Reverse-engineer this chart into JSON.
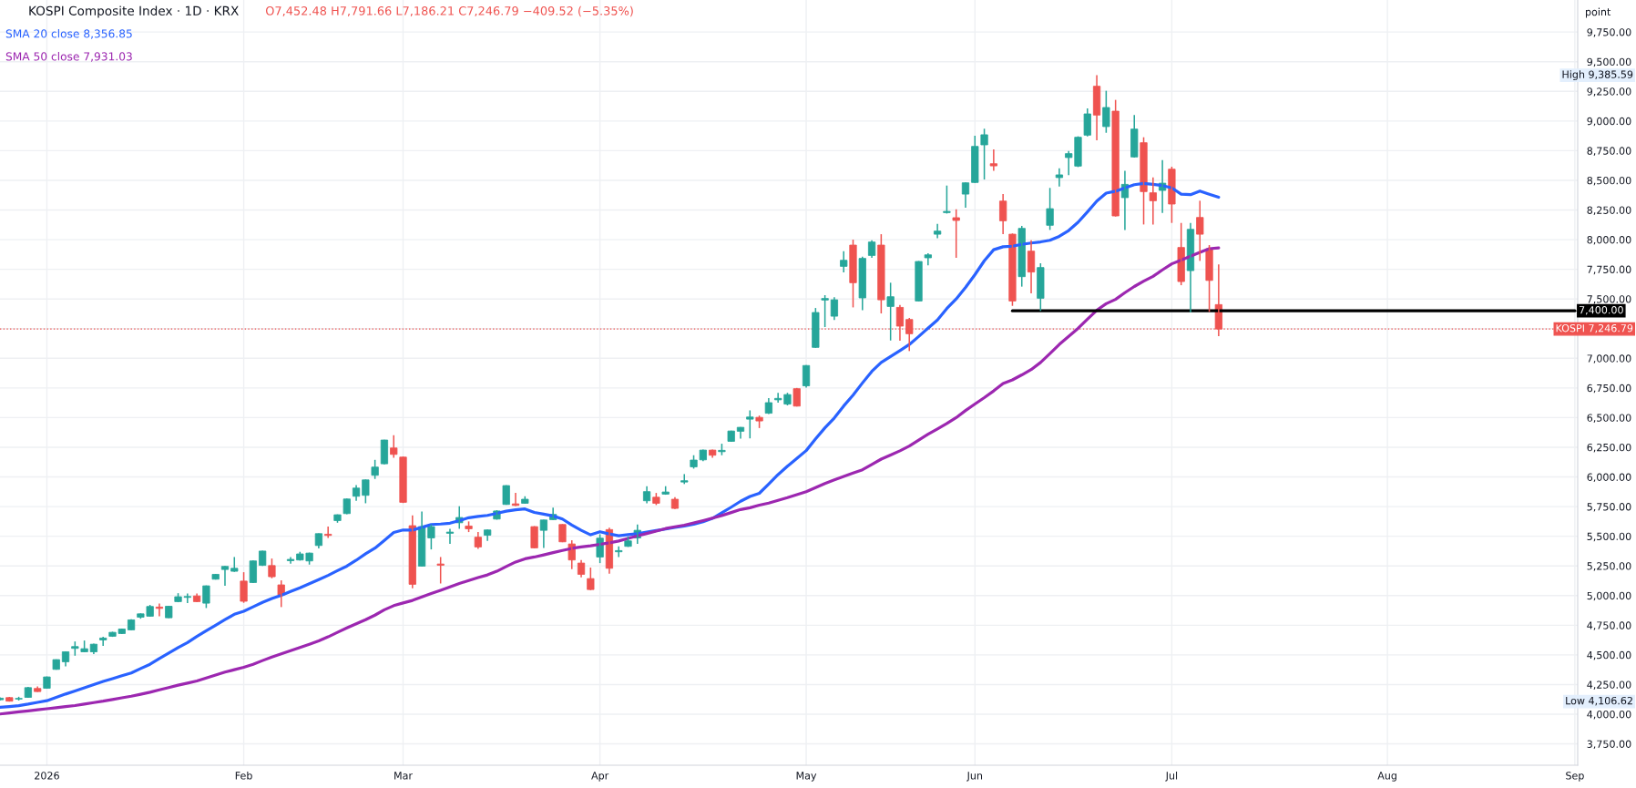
{
  "chart_data": {
    "type": "candlestick",
    "title": "KOSPI Composite Index · 1D · KRX",
    "subtitle": "O7,452.48 H7,791.66 L7,186.21 C7,246.79 −409.52 (−5.35%)",
    "ylabel": "point",
    "categories": [
      null,
      null,
      null,
      null,
      null,
      "2026",
      null,
      null,
      null,
      null,
      null,
      null,
      null,
      null,
      null,
      null,
      null,
      null,
      null,
      null,
      null,
      null,
      null,
      null,
      null,
      null,
      "Feb",
      null,
      null,
      null,
      null,
      null,
      null,
      null,
      null,
      null,
      null,
      null,
      null,
      null,
      null,
      null,
      null,
      "Mar",
      null,
      null,
      null,
      null,
      null,
      null,
      null,
      null,
      null,
      null,
      null,
      null,
      null,
      null,
      null,
      null,
      null,
      null,
      null,
      null,
      "Apr",
      null,
      null,
      null,
      null,
      null,
      null,
      null,
      null,
      null,
      null,
      null,
      null,
      null,
      null,
      null,
      null,
      null,
      null,
      null,
      null,
      null,
      "May",
      null,
      null,
      null,
      null,
      null,
      null,
      null,
      null,
      null,
      null,
      null,
      null,
      null,
      null,
      null,
      null,
      null,
      "Jun",
      null,
      null,
      null,
      null,
      null,
      null,
      null,
      null,
      null,
      null,
      null,
      null,
      null,
      null,
      null,
      null,
      null,
      null,
      null,
      null,
      "Jul",
      null,
      null,
      null,
      null,
      null,
      null,
      null,
      null,
      null,
      null,
      null,
      null,
      null,
      null,
      null,
      null,
      null,
      null,
      null,
      null,
      null,
      null,
      "Aug",
      null,
      null,
      null,
      null,
      null,
      null,
      null,
      null,
      null,
      null,
      null,
      null,
      null,
      null,
      null,
      null,
      null,
      null,
      null,
      "Sep"
    ],
    "ohlc": [
      [
        4122,
        4142,
        4115,
        4135
      ],
      [
        4140,
        4146,
        4106.62,
        4110
      ],
      [
        4128,
        4147,
        4115,
        4133
      ],
      [
        4142,
        4230,
        4138,
        4224
      ],
      [
        4217,
        4235,
        4188,
        4191
      ],
      [
        4219,
        4318,
        4215,
        4314
      ],
      [
        4378,
        4462,
        4375,
        4460
      ],
      [
        4442,
        4528,
        4404,
        4526
      ],
      [
        4555,
        4613,
        4493,
        4570
      ],
      [
        4526,
        4621,
        4522,
        4552
      ],
      [
        4526,
        4595,
        4506,
        4590
      ],
      [
        4626,
        4652,
        4575,
        4642
      ],
      [
        4657,
        4695,
        4652,
        4690
      ],
      [
        4680,
        4722,
        4676,
        4718
      ],
      [
        4711,
        4800,
        4708,
        4795
      ],
      [
        4818,
        4850,
        4805,
        4846
      ],
      [
        4826,
        4921,
        4822,
        4908
      ],
      [
        4903,
        4933,
        4826,
        4892
      ],
      [
        4813,
        4913,
        4810,
        4910
      ],
      [
        4949,
        5020,
        4944,
        4990
      ],
      [
        4985,
        5018,
        4936,
        4992
      ],
      [
        4997,
        5018,
        4945,
        4949
      ],
      [
        4936,
        5085,
        4895,
        5082
      ],
      [
        5138,
        5182,
        5135,
        5179
      ],
      [
        5220,
        5250,
        5082,
        5246
      ],
      [
        5205,
        5325,
        5200,
        5230
      ],
      [
        5122,
        5197,
        4939,
        4952
      ],
      [
        5110,
        5295,
        5105,
        5292
      ],
      [
        5255,
        5378,
        5250,
        5375
      ],
      [
        5253,
        5312,
        5146,
        5159
      ],
      [
        5090,
        5128,
        4903,
        5005
      ],
      [
        5294,
        5325,
        5269,
        5305
      ],
      [
        5300,
        5369,
        5295,
        5351
      ],
      [
        5292,
        5362,
        5261,
        5358
      ],
      [
        5422,
        5525,
        5397,
        5522
      ],
      [
        5517,
        5581,
        5486,
        5507
      ],
      [
        5632,
        5684,
        5614,
        5681
      ],
      [
        5691,
        5817,
        5686,
        5814
      ],
      [
        5837,
        5932,
        5799,
        5906
      ],
      [
        5845,
        5978,
        5778,
        5975
      ],
      [
        6014,
        6144,
        5983,
        6083
      ],
      [
        6111,
        6314,
        6106,
        6311
      ],
      [
        6244,
        6352,
        6162,
        6190
      ],
      [
        6167,
        6172,
        5780,
        5786
      ],
      [
        5589,
        5676,
        5061,
        5095
      ],
      [
        5248,
        5709,
        5244,
        5581
      ],
      [
        5486,
        5599,
        5389,
        5581
      ],
      [
        5266,
        5325,
        5102,
        5256
      ],
      [
        5525,
        5563,
        5435,
        5535
      ],
      [
        5614,
        5753,
        5563,
        5658
      ],
      [
        5586,
        5625,
        5535,
        5563
      ],
      [
        5492,
        5535,
        5394,
        5410
      ],
      [
        5509,
        5557,
        5461,
        5553
      ],
      [
        5645,
        5720,
        5640,
        5713
      ],
      [
        5768,
        5930,
        5765,
        5927
      ],
      [
        5773,
        5865,
        5755,
        5760
      ],
      [
        5778,
        5837,
        5775,
        5812
      ],
      [
        5581,
        5585,
        5398,
        5402
      ],
      [
        5550,
        5640,
        5402,
        5637
      ],
      [
        5640,
        5742,
        5637,
        5684
      ],
      [
        5599,
        5602,
        5450,
        5453
      ],
      [
        5435,
        5466,
        5223,
        5300
      ],
      [
        5274,
        5300,
        5154,
        5179
      ],
      [
        5143,
        5236,
        5046,
        5051
      ],
      [
        5325,
        5517,
        5274,
        5484
      ],
      [
        5556,
        5573,
        5184,
        5230
      ],
      [
        5369,
        5415,
        5325,
        5379
      ],
      [
        5415,
        5497,
        5410,
        5461
      ],
      [
        5486,
        5599,
        5435,
        5550
      ],
      [
        5799,
        5922,
        5778,
        5876
      ],
      [
        5829,
        5865,
        5763,
        5778
      ],
      [
        5855,
        5922,
        5850,
        5873
      ],
      [
        5812,
        5829,
        5730,
        5735
      ],
      [
        5957,
        6024,
        5940,
        5968
      ],
      [
        6085,
        6183,
        6070,
        6142
      ],
      [
        6144,
        6230,
        6132,
        6226
      ],
      [
        6226,
        6230,
        6162,
        6183
      ],
      [
        6213,
        6280,
        6183,
        6224
      ],
      [
        6300,
        6390,
        6296,
        6387
      ],
      [
        6385,
        6421,
        6323,
        6418
      ],
      [
        6487,
        6561,
        6325,
        6505
      ],
      [
        6502,
        6517,
        6412,
        6472
      ],
      [
        6537,
        6665,
        6530,
        6626
      ],
      [
        6650,
        6709,
        6626,
        6662
      ],
      [
        6614,
        6709,
        6603,
        6694
      ],
      [
        6744,
        6750,
        6594,
        6597
      ],
      [
        6768,
        6942,
        6753,
        6939
      ],
      [
        7092,
        7424,
        7088,
        7386
      ],
      [
        7491,
        7532,
        7263,
        7504
      ],
      [
        7355,
        7514,
        7322,
        7493
      ],
      [
        7775,
        7903,
        7724,
        7826
      ],
      [
        7954,
        8000,
        7429,
        7637
      ],
      [
        7509,
        7857,
        7406,
        7842
      ],
      [
        7867,
        7995,
        7847,
        7980
      ],
      [
        7954,
        8046,
        7378,
        7493
      ],
      [
        7437,
        7637,
        7150,
        7519
      ],
      [
        7429,
        7450,
        7148,
        7271
      ],
      [
        7327,
        7340,
        7061,
        7207
      ],
      [
        7483,
        7820,
        7480,
        7816
      ],
      [
        7847,
        7885,
        7783,
        7872
      ],
      [
        8046,
        8133,
        8013,
        8072
      ],
      [
        8228,
        8456,
        8220,
        8238
      ],
      [
        8185,
        8256,
        7847,
        8162
      ],
      [
        8384,
        8482,
        8269,
        8479
      ],
      [
        8482,
        8876,
        8478,
        8786
      ],
      [
        8799,
        8935,
        8507,
        8884
      ],
      [
        8640,
        8761,
        8581,
        8622
      ],
      [
        8325,
        8384,
        8046,
        8159
      ],
      [
        8046,
        8052,
        7442,
        7483
      ],
      [
        7688,
        8116,
        7604,
        8095
      ],
      [
        7903,
        7995,
        7547,
        7727
      ],
      [
        7506,
        7801,
        7399,
        7765
      ],
      [
        8121,
        8436,
        8082,
        8261
      ],
      [
        8523,
        8602,
        8448,
        8546
      ],
      [
        8692,
        8748,
        8543,
        8725
      ],
      [
        8620,
        8871,
        8612,
        8863
      ],
      [
        8881,
        9106,
        8871,
        9060
      ],
      [
        9293,
        9385.59,
        8838,
        9050
      ],
      [
        8953,
        9255,
        8901,
        9114
      ],
      [
        9083,
        9178,
        8195,
        8200
      ],
      [
        8354,
        8581,
        8082,
        8466
      ],
      [
        8697,
        9050,
        8692,
        8932
      ],
      [
        8817,
        8863,
        8128,
        8405
      ],
      [
        8395,
        8525,
        8128,
        8328
      ],
      [
        8415,
        8671,
        8225,
        8476
      ],
      [
        8594,
        8615,
        8141,
        8300
      ],
      [
        7934,
        8141,
        7616,
        7647
      ],
      [
        7739,
        8141,
        7386,
        8087
      ],
      [
        8187,
        8328,
        7821,
        8046
      ],
      [
        7923,
        7954,
        7391,
        7656.31
      ],
      [
        7452.48,
        7791.66,
        7186.21,
        7246.79
      ],
      null,
      null,
      null,
      null,
      null,
      null,
      null,
      null,
      null,
      null,
      null,
      null,
      null,
      null,
      null,
      null,
      null,
      null,
      null,
      null,
      null,
      null,
      null,
      null,
      null,
      null,
      null,
      null,
      null,
      null,
      null,
      null,
      null,
      null,
      null,
      null,
      null,
      null
    ],
    "colors": [
      "#26a69a",
      "#ef5350",
      "#26a69a",
      "#26a69a",
      "#ef5350",
      "#26a69a",
      "#26a69a",
      "#26a69a",
      "#26a69a",
      "#26a69a",
      "#26a69a",
      "#26a69a",
      "#26a69a",
      "#26a69a",
      "#26a69a",
      "#26a69a",
      "#26a69a",
      "#ef5350",
      "#26a69a",
      "#26a69a",
      "#26a69a",
      "#ef5350",
      "#26a69a",
      "#26a69a",
      "#26a69a",
      "#26a69a",
      "#ef5350",
      "#26a69a",
      "#26a69a",
      "#ef5350",
      "#ef5350",
      "#26a69a",
      "#26a69a",
      "#26a69a",
      "#26a69a",
      "#ef5350",
      "#26a69a",
      "#26a69a",
      "#26a69a",
      "#26a69a",
      "#26a69a",
      "#26a69a",
      "#ef5350",
      "#ef5350",
      "#ef5350",
      "#26a69a",
      "#26a69a",
      "#ef5350",
      "#26a69a",
      "#26a69a",
      "#ef5350",
      "#ef5350",
      "#26a69a",
      "#26a69a",
      "#26a69a",
      "#ef5350",
      "#26a69a",
      "#ef5350",
      "#26a69a",
      "#26a69a",
      "#ef5350",
      "#ef5350",
      "#ef5350",
      "#ef5350",
      "#26a69a",
      "#ef5350",
      "#26a69a",
      "#26a69a",
      "#26a69a",
      "#26a69a",
      "#ef5350",
      "#26a69a",
      "#ef5350",
      "#26a69a",
      "#26a69a",
      "#26a69a",
      "#ef5350",
      "#26a69a",
      "#26a69a",
      "#26a69a",
      "#26a69a",
      "#ef5350",
      "#26a69a",
      "#26a69a",
      "#26a69a",
      "#ef5350",
      "#26a69a",
      "#26a69a",
      "#26a69a",
      "#26a69a",
      "#26a69a",
      "#ef5350",
      "#26a69a",
      "#26a69a",
      "#ef5350",
      "#26a69a",
      "#ef5350",
      "#ef5350",
      "#26a69a",
      "#26a69a",
      "#26a69a",
      "#26a69a",
      "#ef5350",
      "#26a69a",
      "#26a69a",
      "#26a69a",
      "#ef5350",
      "#ef5350",
      "#ef5350",
      "#26a69a",
      "#ef5350",
      "#26a69a",
      "#26a69a",
      "#26a69a",
      "#26a69a",
      "#26a69a",
      "#26a69a",
      "#ef5350",
      "#26a69a",
      "#ef5350",
      "#26a69a",
      "#26a69a",
      "#ef5350",
      "#ef5350",
      "#26a69a",
      "#ef5350",
      "#ef5350",
      "#26a69a",
      "#ef5350",
      "#ef5350",
      "#ef5350",
      null,
      null,
      null,
      null,
      null,
      null,
      null,
      null,
      null,
      null,
      null,
      null,
      null,
      null,
      null,
      null,
      null,
      null,
      null,
      null,
      null,
      null,
      null,
      null,
      null,
      null,
      null,
      null,
      null,
      null,
      null,
      null,
      null,
      null,
      null,
      null,
      null,
      null
    ],
    "series": [
      {
        "name": "SMA 20 close 8,356.85",
        "type": "line",
        "color": "#2962ff",
        "values": [
          4058,
          4065,
          4072,
          4085,
          4100,
          4114,
          4142,
          4170,
          4196,
          4223,
          4250,
          4276,
          4300,
          4324,
          4348,
          4385,
          4421,
          4470,
          4515,
          4562,
          4604,
          4655,
          4703,
          4750,
          4797,
          4842,
          4868,
          4905,
          4943,
          4975,
          5002,
          5035,
          5066,
          5100,
          5135,
          5170,
          5210,
          5248,
          5298,
          5352,
          5400,
          5465,
          5532,
          5553,
          5552,
          5575,
          5599,
          5603,
          5610,
          5632,
          5656,
          5667,
          5676,
          5693,
          5711,
          5723,
          5730,
          5701,
          5686,
          5671,
          5645,
          5595,
          5550,
          5512,
          5538,
          5519,
          5504,
          5513,
          5522,
          5535,
          5548,
          5561,
          5574,
          5587,
          5601,
          5622,
          5650,
          5697,
          5745,
          5795,
          5835,
          5862,
          5940,
          6020,
          6090,
          6155,
          6222,
          6320,
          6414,
          6497,
          6598,
          6690,
          6792,
          6890,
          6965,
          7015,
          7065,
          7116,
          7184,
          7254,
          7323,
          7419,
          7500,
          7597,
          7705,
          7822,
          7915,
          7940,
          7945,
          7960,
          7972,
          7981,
          7995,
          8028,
          8077,
          8146,
          8234,
          8325,
          8392,
          8408,
          8436,
          8463,
          8474,
          8466,
          8456,
          8436,
          8384,
          8379,
          8410,
          8383,
          8356.85,
          null,
          null,
          null,
          null,
          null,
          null,
          null,
          null,
          null,
          null,
          null,
          null,
          null,
          null,
          null,
          null,
          null,
          null,
          null,
          null,
          null,
          null,
          null,
          null,
          null,
          null,
          null,
          null,
          null,
          null,
          null,
          null,
          null,
          null,
          null,
          null,
          null,
          null
        ]
      },
      {
        "name": "SMA 50 close 7,931.03",
        "type": "line",
        "color": "#9c27b0",
        "values": [
          4002,
          4011,
          4020,
          4028,
          4037,
          4046,
          4055,
          4064,
          4073,
          4085,
          4098,
          4110,
          4124,
          4138,
          4152,
          4168,
          4185,
          4205,
          4225,
          4245,
          4262,
          4280,
          4305,
          4330,
          4355,
          4375,
          4395,
          4420,
          4452,
          4482,
          4508,
          4535,
          4562,
          4590,
          4618,
          4652,
          4690,
          4727,
          4762,
          4797,
          4835,
          4880,
          4915,
          4938,
          4959,
          4988,
          5018,
          5045,
          5073,
          5102,
          5127,
          5152,
          5174,
          5205,
          5245,
          5283,
          5310,
          5325,
          5343,
          5362,
          5380,
          5398,
          5410,
          5420,
          5432,
          5445,
          5460,
          5482,
          5503,
          5523,
          5544,
          5565,
          5580,
          5593,
          5612,
          5632,
          5653,
          5675,
          5700,
          5725,
          5740,
          5762,
          5780,
          5803,
          5825,
          5850,
          5876,
          5910,
          5945,
          5975,
          6004,
          6032,
          6060,
          6105,
          6150,
          6185,
          6220,
          6260,
          6310,
          6360,
          6405,
          6450,
          6500,
          6560,
          6615,
          6668,
          6725,
          6788,
          6818,
          6860,
          6905,
          6965,
          7040,
          7117,
          7185,
          7252,
          7330,
          7405,
          7460,
          7497,
          7553,
          7605,
          7650,
          7691,
          7745,
          7796,
          7828,
          7860,
          7893,
          7924,
          7931.03,
          null,
          null,
          null,
          null,
          null,
          null,
          null,
          null,
          null,
          null,
          null,
          null,
          null,
          null,
          null,
          null,
          null,
          null,
          null,
          null,
          null,
          null,
          null,
          null,
          null,
          null,
          null,
          null,
          null,
          null,
          null,
          null,
          null,
          null,
          null,
          null,
          null,
          null
        ]
      },
      {
        "type": "line",
        "color": "#000000",
        "values": [
          null,
          null,
          null,
          null,
          null,
          null,
          null,
          null,
          null,
          null,
          null,
          null,
          null,
          null,
          null,
          null,
          null,
          null,
          null,
          null,
          null,
          null,
          null,
          null,
          null,
          null,
          null,
          null,
          null,
          null,
          null,
          null,
          null,
          null,
          null,
          null,
          null,
          null,
          null,
          null,
          null,
          null,
          null,
          null,
          null,
          null,
          null,
          null,
          null,
          null,
          null,
          null,
          null,
          null,
          null,
          null,
          null,
          null,
          null,
          null,
          null,
          null,
          null,
          null,
          null,
          null,
          null,
          null,
          null,
          null,
          null,
          null,
          null,
          null,
          null,
          null,
          null,
          null,
          null,
          null,
          null,
          null,
          null,
          null,
          null,
          null,
          null,
          null,
          null,
          null,
          null,
          null,
          null,
          null,
          null,
          null,
          null,
          null,
          null,
          null,
          null,
          null,
          null,
          null,
          null,
          null,
          null,
          null,
          7400,
          7400,
          7400,
          7400,
          7400,
          7400,
          7400,
          7400,
          7400,
          7400,
          7400,
          7400,
          7400,
          7400,
          7400,
          7400,
          7400,
          7400,
          7400,
          7400,
          7400,
          7400,
          7400,
          7400,
          7400,
          7400,
          7400,
          7400,
          7400,
          7400,
          7400,
          7400,
          7400,
          7400,
          7400,
          7400,
          7400,
          7400,
          7400,
          7400,
          7400,
          7400,
          7400,
          7400,
          7400,
          7400,
          7400,
          7400,
          7400,
          7400,
          7400,
          7400,
          7400,
          7400,
          7400,
          7400,
          7400,
          7400,
          7400,
          7400,
          7400
        ],
        "value_labels": [
          null,
          null,
          null,
          null,
          null,
          null,
          null,
          null,
          null,
          null,
          null,
          null,
          null,
          null,
          null,
          null,
          null,
          null,
          null,
          null,
          null,
          null,
          null,
          null,
          null,
          null,
          null,
          null,
          null,
          null,
          null,
          null,
          null,
          null,
          null,
          null,
          null,
          null,
          null,
          null,
          null,
          null,
          null,
          null,
          null,
          null,
          null,
          null,
          null,
          null,
          null,
          null,
          null,
          null,
          null,
          null,
          null,
          null,
          null,
          null,
          null,
          null,
          null,
          null,
          null,
          null,
          null,
          null,
          null,
          null,
          null,
          null,
          null,
          null,
          null,
          null,
          null,
          null,
          null,
          null,
          null,
          null,
          null,
          null,
          null,
          null,
          null,
          null,
          null,
          null,
          null,
          null,
          null,
          null,
          null,
          null,
          null,
          null,
          null,
          null,
          null,
          null,
          null,
          null,
          null,
          null,
          null,
          null,
          null,
          null,
          null,
          null,
          null,
          null,
          null,
          null,
          null,
          null,
          null,
          null,
          null,
          null,
          null,
          null,
          null,
          null,
          null,
          null,
          null,
          null,
          null,
          null,
          null,
          null,
          null,
          null,
          null,
          null,
          null,
          null,
          null,
          null,
          null,
          null,
          null,
          null,
          null,
          null,
          null,
          null,
          null,
          null,
          null,
          null,
          null,
          null,
          null,
          null,
          null,
          null,
          null,
          null,
          null,
          null,
          null,
          null,
          null,
          null,
          "7,400.00"
        ]
      }
    ],
    "ref_lines": [
      {
        "axis": "y",
        "value": 7246.79,
        "label": "KOSPI 7,246.79",
        "color": "#ef5350",
        "line_style": "dotted"
      }
    ],
    "annotations": [
      "High 9,385.59",
      "Low 4,106.62"
    ],
    "ylim": [
      3570,
      10020
    ],
    "yticks": [
      {
        "value": 3750,
        "label": "3,750.00"
      },
      {
        "value": 4000,
        "label": "4,000.00"
      },
      {
        "value": 4250,
        "label": "4,250.00"
      },
      {
        "value": 4500,
        "label": "4,500.00"
      },
      {
        "value": 4750,
        "label": "4,750.00"
      },
      {
        "value": 5000,
        "label": "5,000.00"
      },
      {
        "value": 5250,
        "label": "5,250.00"
      },
      {
        "value": 5500,
        "label": "5,500.00"
      },
      {
        "value": 5750,
        "label": "5,750.00"
      },
      {
        "value": 6000,
        "label": "6,000.00"
      },
      {
        "value": 6250,
        "label": "6,250.00"
      },
      {
        "value": 6500,
        "label": "6,500.00"
      },
      {
        "value": 6750,
        "label": "6,750.00"
      },
      {
        "value": 7000,
        "label": "7,000.00"
      },
      {
        "value": 7250,
        "label": null
      },
      {
        "value": 7500,
        "label": "7,500.00"
      },
      {
        "value": 7750,
        "label": "7,750.00"
      },
      {
        "value": 8000,
        "label": "8,000.00"
      },
      {
        "value": 8250,
        "label": "8,250.00"
      },
      {
        "value": 8500,
        "label": "8,500.00"
      },
      {
        "value": 8750,
        "label": "8,750.00"
      },
      {
        "value": 9000,
        "label": "9,000.00"
      },
      {
        "value": 9250,
        "label": "9,250.00"
      },
      {
        "value": 9500,
        "label": "9,500.00"
      },
      {
        "value": 9750,
        "label": "9,750.00"
      }
    ],
    "grid": true,
    "legend": "top left"
  }
}
